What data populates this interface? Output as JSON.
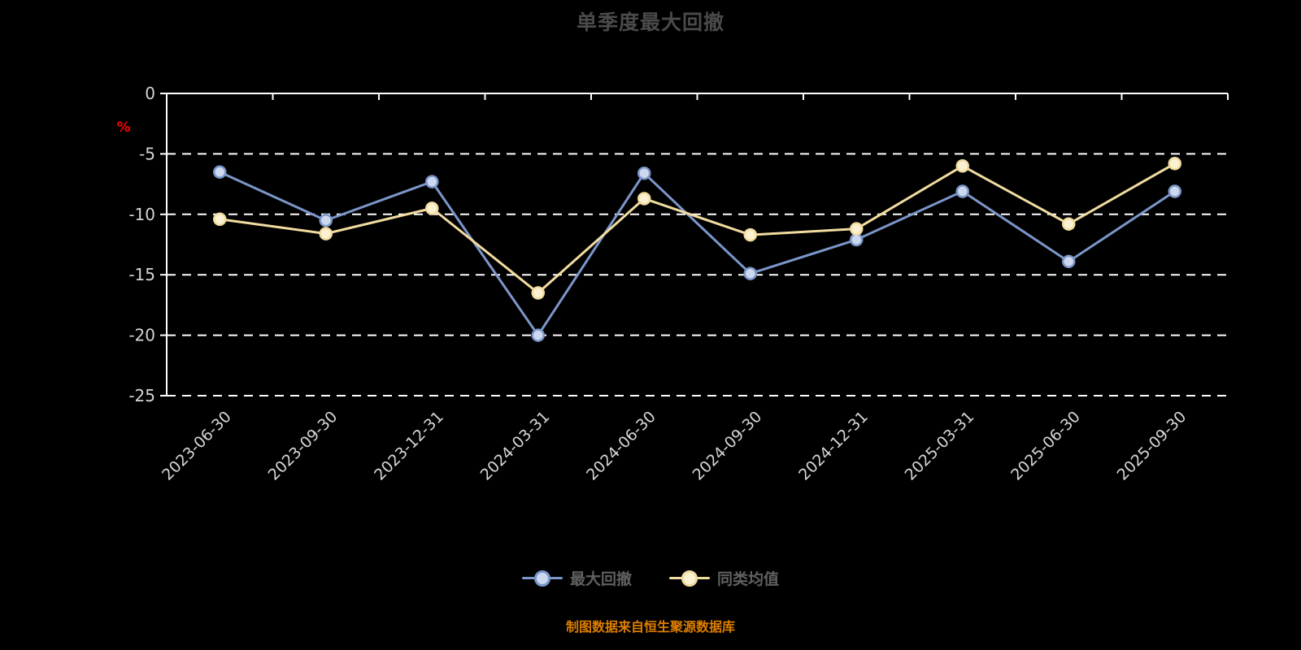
{
  "title": "单季度最大回撤",
  "source_note": "制图数据来自恒生聚源数据库",
  "colors": {
    "background": "#000000",
    "axis": "#ffffff",
    "grid": "#ffffff",
    "title": "#4a4a4a",
    "tick_label": "#d6d6d6",
    "ylabel": "#ff0000",
    "legend_label": "#606060",
    "source": "#de7e00"
  },
  "chart_data": {
    "type": "line",
    "title": "单季度最大回撤",
    "xlabel": "",
    "ylabel": "%",
    "ylim": [
      -25,
      0
    ],
    "yticks": [
      0,
      -5,
      -10,
      -15,
      -20,
      -25
    ],
    "grid": true,
    "grid_style": "dashed",
    "legend_position": "bottom",
    "categories": [
      "2023-06-30",
      "2023-09-30",
      "2023-12-31",
      "2024-03-31",
      "2024-06-30",
      "2024-09-30",
      "2024-12-31",
      "2025-03-31",
      "2025-06-30",
      "2025-09-30"
    ],
    "series": [
      {
        "name": "最大回撤",
        "color": "#7b96c9",
        "marker_fill": "#ccd8ee",
        "values": [
          -6.5,
          -10.5,
          -7.3,
          -20.0,
          -6.6,
          -14.9,
          -12.1,
          -8.1,
          -13.9,
          -8.1
        ]
      },
      {
        "name": "同类均值",
        "color": "#f2dca0",
        "marker_fill": "#faf1d2",
        "values": [
          -10.4,
          -11.6,
          -9.5,
          -16.5,
          -8.7,
          -11.7,
          -11.2,
          -6.0,
          -10.8,
          -5.8
        ]
      }
    ]
  }
}
